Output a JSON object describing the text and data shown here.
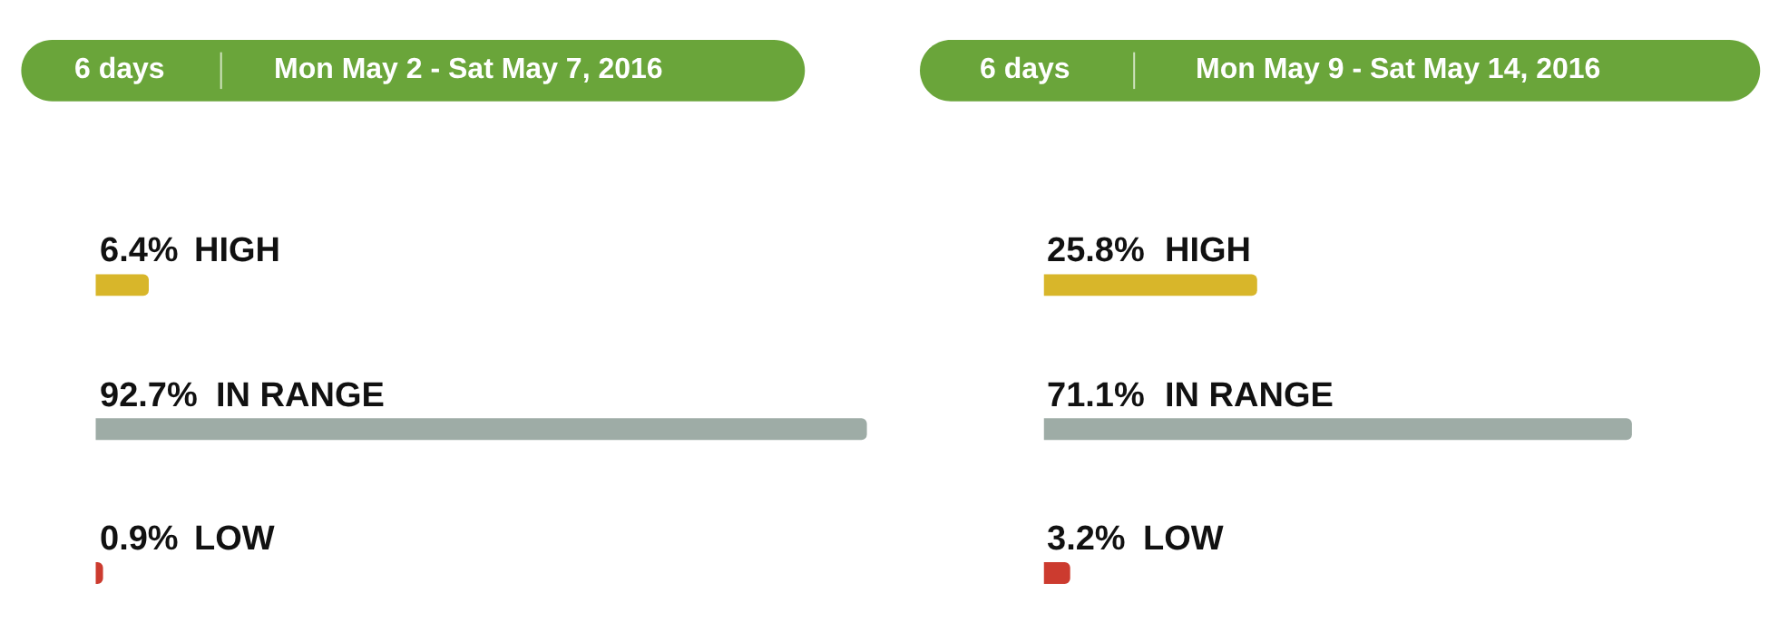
{
  "chart_data": [
    {
      "type": "bar",
      "orientation": "horizontal",
      "subtitle": "6 days",
      "title": "Mon May 2 - Sat May 7, 2016",
      "categories": [
        "HIGH",
        "IN RANGE",
        "LOW"
      ],
      "values": [
        6.4,
        92.7,
        0.9
      ],
      "colors": [
        "#d8b62a",
        "#9eaca6",
        "#cc3b2f"
      ],
      "value_labels": [
        "6.4%",
        "92.7%",
        "0.9%"
      ],
      "tick_labels": false
    },
    {
      "type": "bar",
      "orientation": "horizontal",
      "subtitle": "6 days",
      "title": "Mon May 9 - Sat May 14, 2016",
      "categories": [
        "HIGH",
        "IN RANGE",
        "LOW"
      ],
      "values": [
        25.8,
        71.1,
        3.2
      ],
      "colors": [
        "#d8b62a",
        "#9eaca6",
        "#cc3b2f"
      ],
      "value_labels": [
        "25.8%",
        "71.1%",
        "3.2%"
      ],
      "tick_labels": false
    }
  ]
}
